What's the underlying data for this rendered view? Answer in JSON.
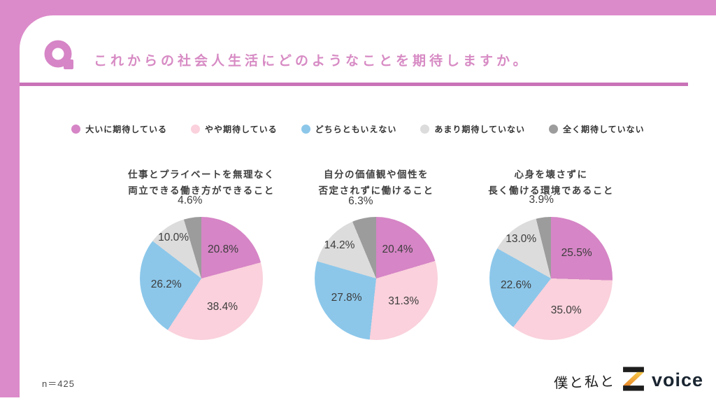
{
  "page": {
    "q_mark": "Q",
    "title": "これからの社会人生活にどのようなことを期待しますか。",
    "sample_size": "n＝425",
    "brand": {
      "handwritten": "僕と私と",
      "z_mark": "Z",
      "voice": "voice"
    }
  },
  "colors": {
    "frame_pink": "#DC8BCA",
    "divider_pink": "#C972B8",
    "title_pink": "#D78BC4",
    "label_text": "#3C3C3C",
    "legend_text": "#333333",
    "brand_navy": "#1A2531",
    "z_orange_top": "#F6C94A",
    "z_orange_bottom": "#E98A2B"
  },
  "chart_data": {
    "type": "pie",
    "count": 3,
    "start": "top-clockwise",
    "legend_position": "top",
    "legend": [
      "大いに期待している",
      "やや期待している",
      "どちらともいえない",
      "あまり期待していない",
      "全く期待していない"
    ],
    "colors": [
      "#D685C6",
      "#FAD1DC",
      "#8CC7EA",
      "#DCDCDC",
      "#9C9C9C"
    ],
    "charts": [
      {
        "title_lines": [
          "仕事とプライベートを無理なく",
          "両立できる働き方ができること"
        ],
        "values": [
          20.8,
          38.4,
          26.2,
          10.0,
          4.6
        ],
        "labels": [
          "20.8%",
          "38.4%",
          "26.2%",
          "10.0%",
          "4.6%"
        ]
      },
      {
        "title_lines": [
          "自分の価値観や個性を",
          "否定されずに働けること"
        ],
        "values": [
          20.4,
          31.3,
          27.8,
          14.2,
          6.3
        ],
        "labels": [
          "20.4%",
          "31.3%",
          "27.8%",
          "14.2%",
          "6.3%"
        ]
      },
      {
        "title_lines": [
          "心身を壊さずに",
          "長く働ける環境であること"
        ],
        "values": [
          25.5,
          35.0,
          22.6,
          13.0,
          3.9
        ],
        "labels": [
          "25.5%",
          "35.0%",
          "22.6%",
          "13.0%",
          "3.9%"
        ]
      }
    ]
  }
}
